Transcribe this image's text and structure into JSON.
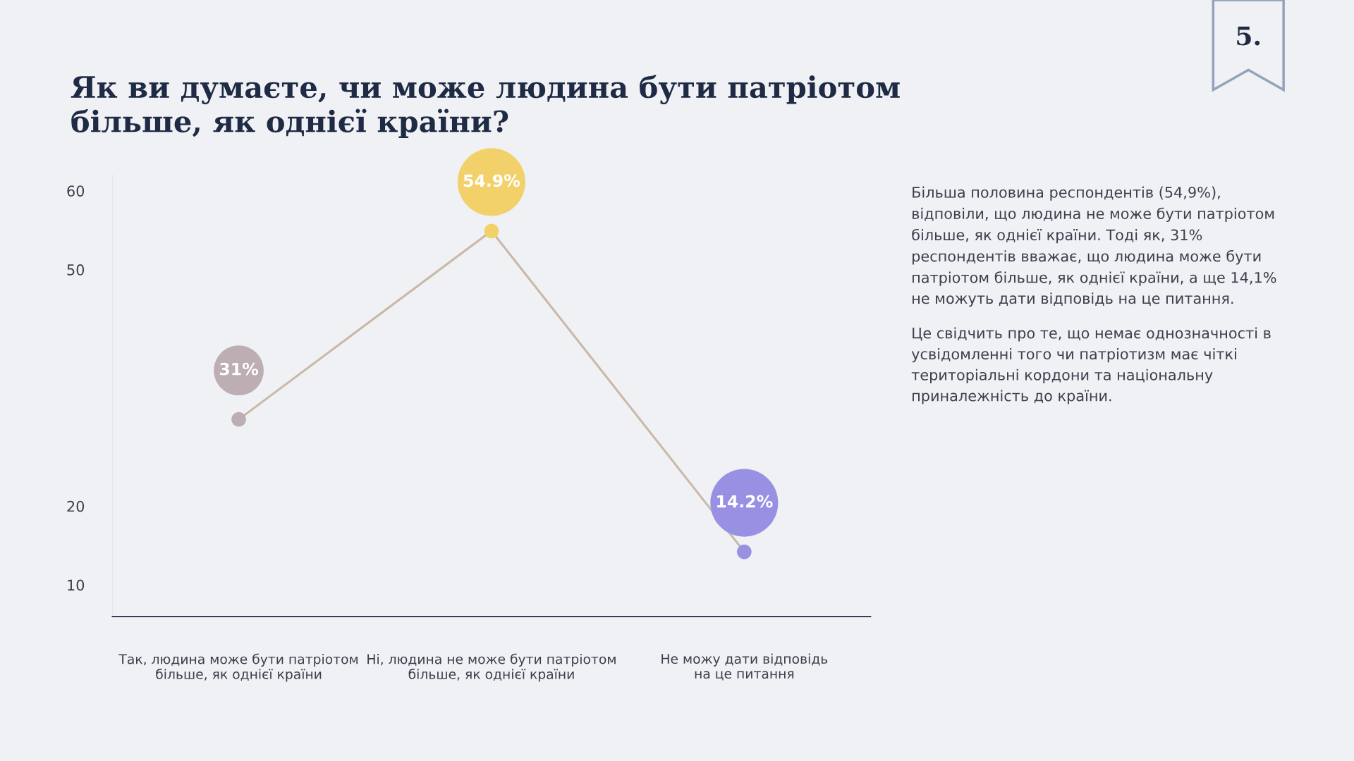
{
  "chart_data": {
    "type": "line",
    "title": "Як ви думаєте, чи може людина бути патріотом більше, як однієї країни?",
    "categories": [
      "Так, людина може бути патріотом\nбільше, як однієї країни",
      "Ні, людина не може бути патріотом\nбільше, як однієї країни",
      "Не можу дати відповідь\nна це питання"
    ],
    "values": [
      31,
      54.9,
      14.2
    ],
    "color": "#c9b9a6",
    "colors": [
      "#bcaeb2",
      "#f2d16b",
      "#9890e3"
    ],
    "value_labels": [
      "31%",
      "54.9%",
      "14.2%"
    ],
    "marker": "circle",
    "ylim": [
      6,
      62
    ],
    "yticks": [
      10,
      20,
      50,
      60
    ],
    "grid": false,
    "annotations": [
      "5.",
      "Більша половина респондентів (54,9%),\nвідповіли, що людина не може бути патріотом\nбільше, як однієї країни. Тоді як, 31%\nреспондентів вважає, що людина може бути\nпатріотом більше, як однієї країни, а ще 14,1%\nне можуть дати відповідь на це питання.",
      "Це свідчить про те, що немає однозначності в\nусвідомленні того чи патріотизм має чіткі\nтериторіальні кордони та національну\nприналежність до країни."
    ]
  }
}
